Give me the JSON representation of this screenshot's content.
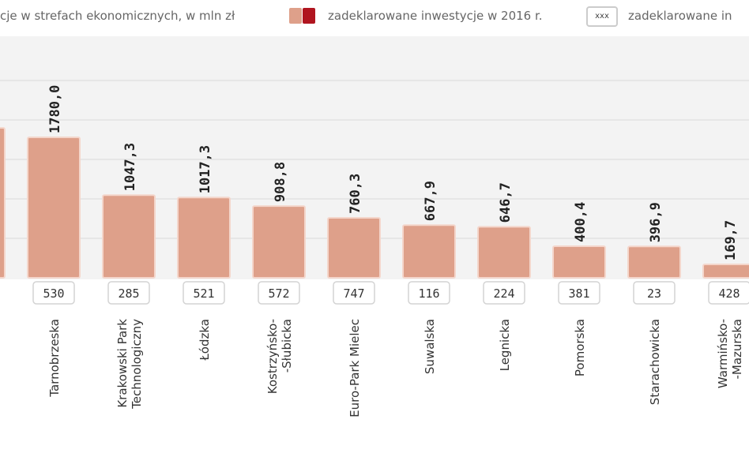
{
  "legend": {
    "title": "cje w strefach ekonomicznych, w mln zł",
    "item1_label": "zadeklarowane inwestycje w 2016 r.",
    "item2_box": "xxx",
    "item2_label": "zadeklarowane in"
  },
  "colors": {
    "bar": "#dea08a",
    "bar_border": "#f4d6cb",
    "legend_dark": "#b0151f",
    "background": "#f3f3f3",
    "grid": "#ffffff"
  },
  "chart_data": {
    "type": "bar",
    "grid": true,
    "ylim": [
      0,
      2600
    ],
    "gridlines": [
      500,
      1000,
      1500,
      2000,
      2500
    ],
    "categories": [
      {
        "label": [
          ""
        ],
        "value": 1900,
        "value_label": "",
        "box": ""
      },
      {
        "label": [
          "Tarnobrzeska"
        ],
        "value": 1780.0,
        "value_label": "1780,0",
        "box": "530"
      },
      {
        "label": [
          "Krakowski Park",
          "Technologiczny"
        ],
        "value": 1047.3,
        "value_label": "1047,3",
        "box": "285"
      },
      {
        "label": [
          "Łódzka"
        ],
        "value": 1017.3,
        "value_label": "1017,3",
        "box": "521"
      },
      {
        "label": [
          "Kostrzyńsko-",
          "-Słubicka"
        ],
        "value": 908.8,
        "value_label": "908,8",
        "box": "572"
      },
      {
        "label": [
          "Euro-Park Mielec"
        ],
        "value": 760.3,
        "value_label": "760,3",
        "box": "747"
      },
      {
        "label": [
          "Suwalska"
        ],
        "value": 667.9,
        "value_label": "667,9",
        "box": "116"
      },
      {
        "label": [
          "Legnicka"
        ],
        "value": 646.7,
        "value_label": "646,7",
        "box": "224"
      },
      {
        "label": [
          "Pomorska"
        ],
        "value": 400.4,
        "value_label": "400,4",
        "box": "381"
      },
      {
        "label": [
          "Starachowicka"
        ],
        "value": 396.9,
        "value_label": "396,9",
        "box": "23"
      },
      {
        "label": [
          "Warmińsko-",
          "-Mazurska"
        ],
        "value": 169.7,
        "value_label": "169,7",
        "box": "428"
      }
    ]
  }
}
